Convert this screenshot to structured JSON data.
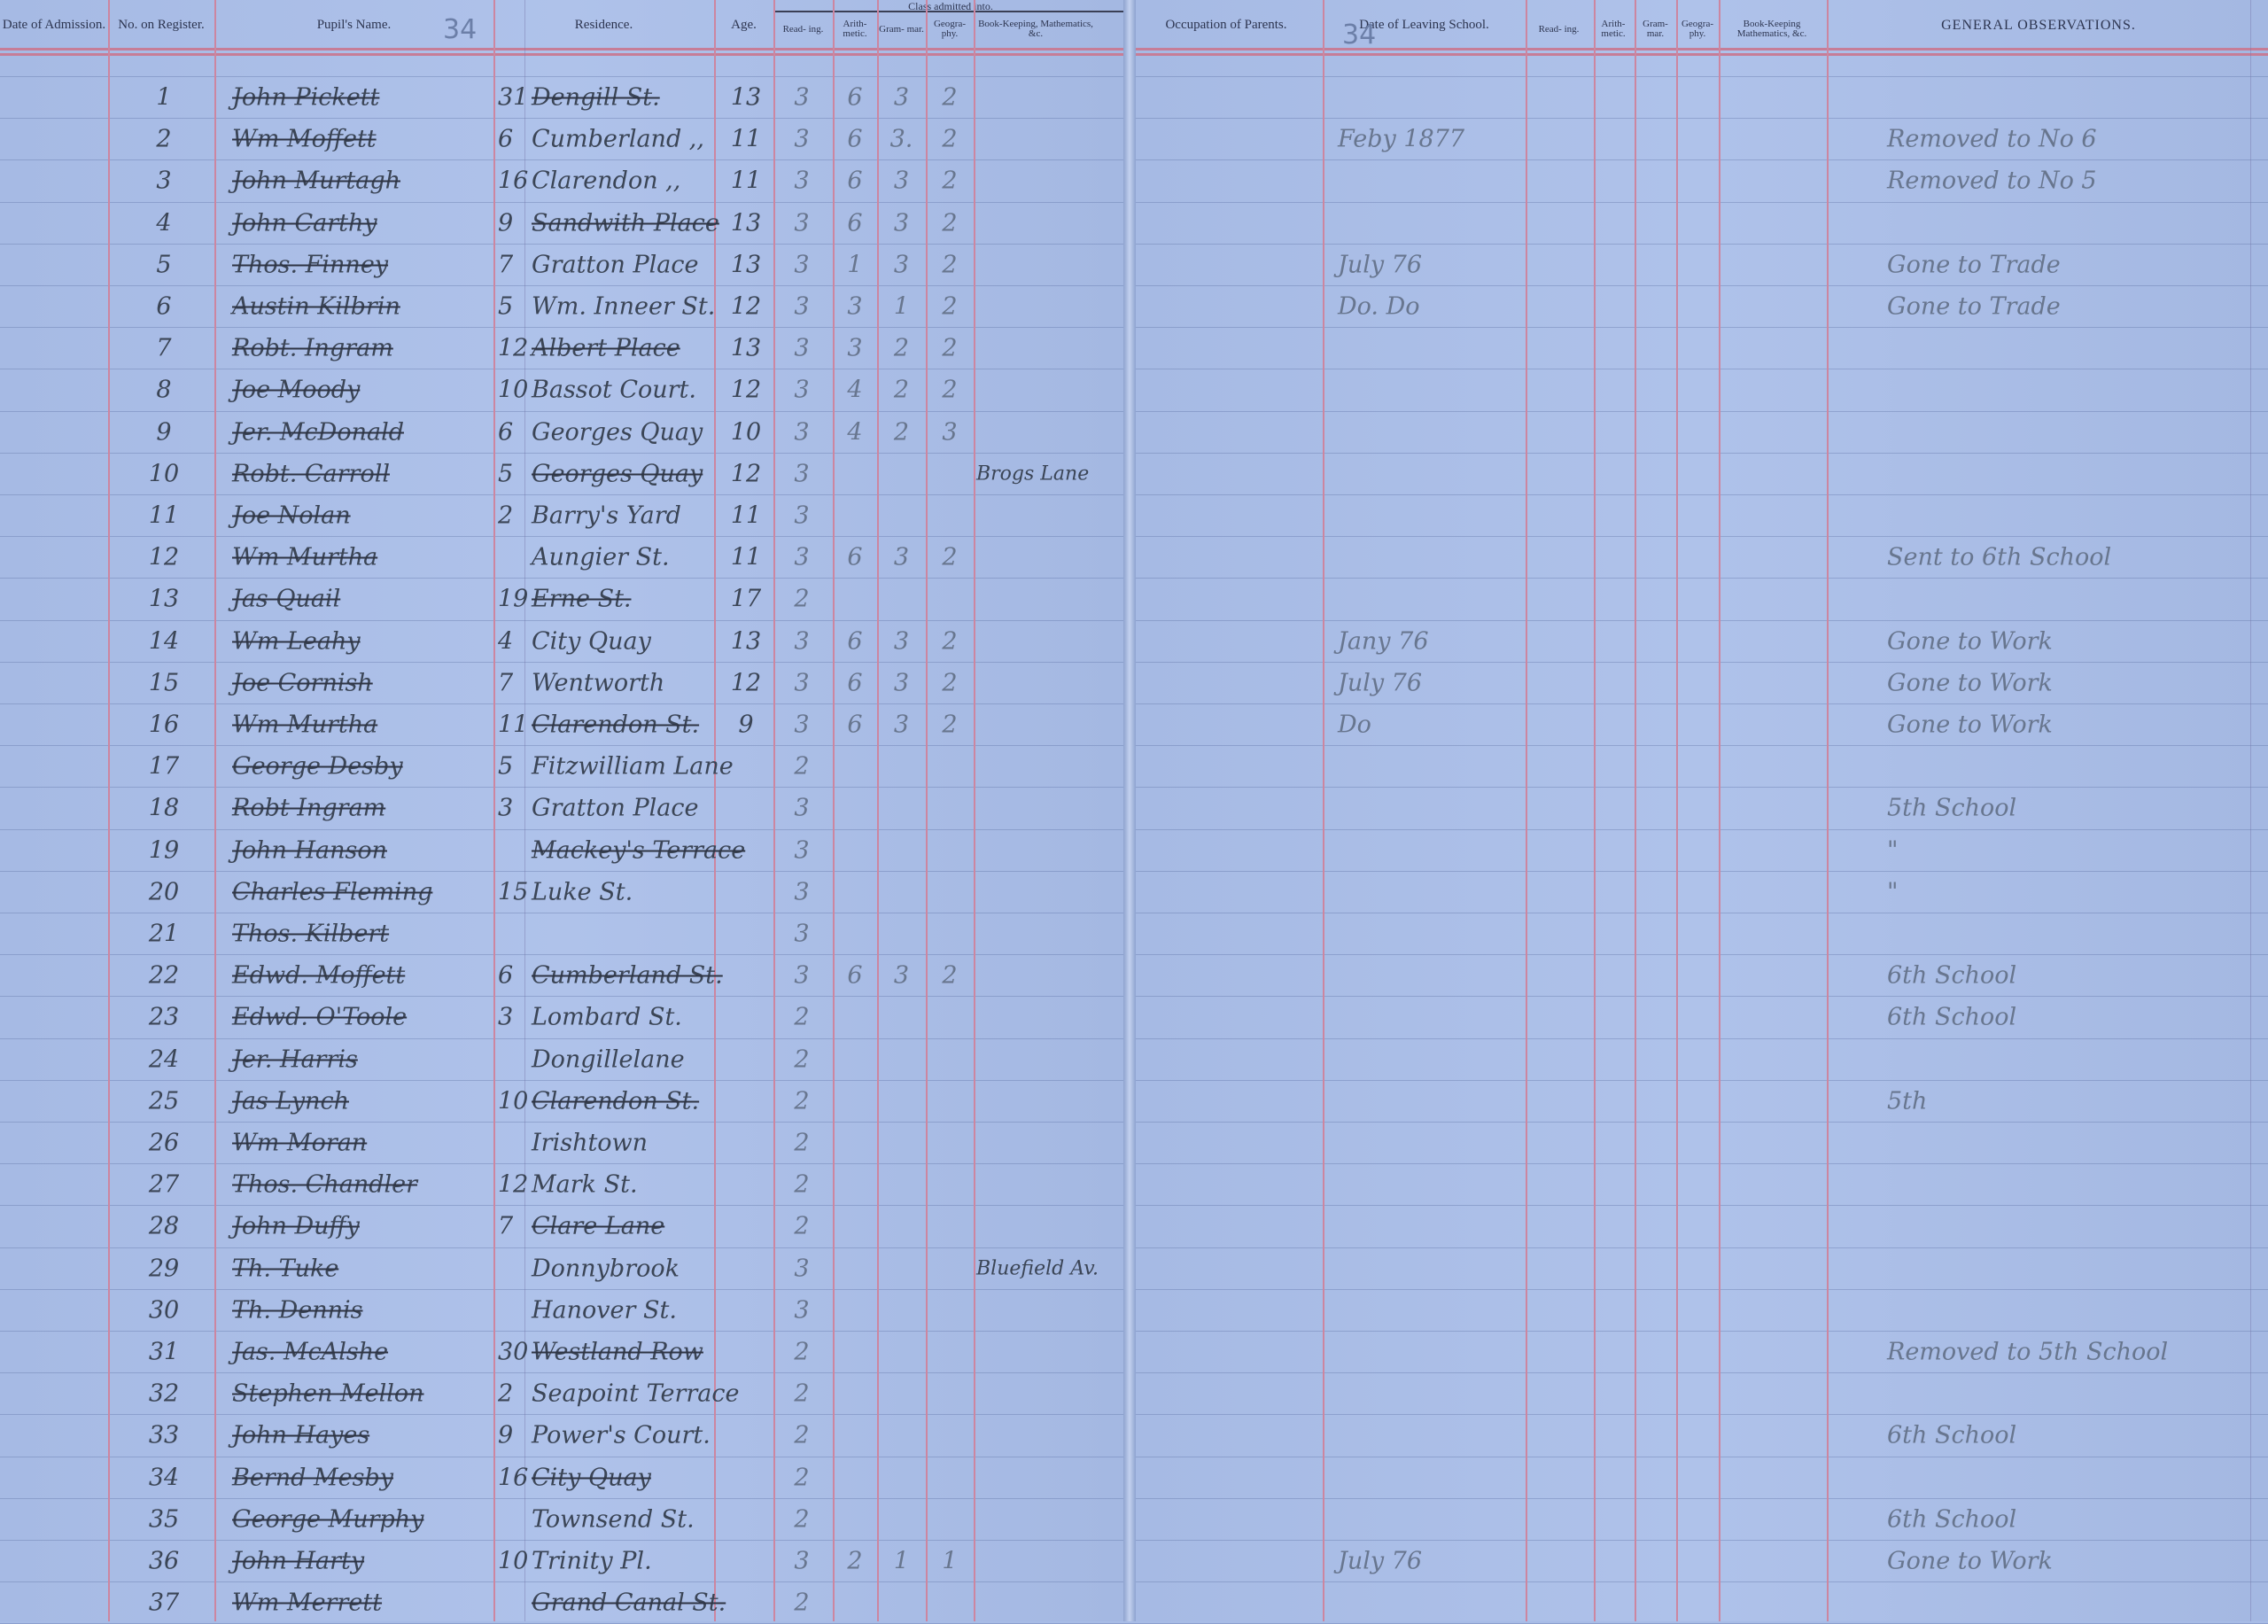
{
  "left_page": {
    "page_number": "34",
    "headers": {
      "date_of_admission": "Date of Admission.",
      "no_on_register": "No. on Register.",
      "pupils_name": "Pupil's Name.",
      "residence": "Residence.",
      "age": "Age.",
      "class_group": "Class admitted into.",
      "reading": "Read- ing.",
      "arithmetic": "Arith- metic.",
      "grammar": "Gram- mar.",
      "geography": "Geogra- phy.",
      "bookkeeping": "Book-Keeping, Mathematics, &c."
    }
  },
  "right_page": {
    "page_number": "34",
    "headers": {
      "occupation": "Occupation of Parents.",
      "date_leaving": "Date of Leaving School.",
      "reading": "Read- ing.",
      "arithmetic": "Arith- metic.",
      "grammar": "Gram- mar.",
      "geography": "Geogra- phy.",
      "bookkeeping": "Book-Keeping Mathematics, &c.",
      "observations": "GENERAL OBSERVATIONS."
    }
  },
  "colors": {
    "paper": "#a8bce6",
    "red_rule": "#cc86a0",
    "ink": "#3b4556"
  },
  "rows": [
    {
      "no": "1",
      "name": "John Pickett",
      "house": "31",
      "street": "Dengill St.",
      "age": "13",
      "reading": "3",
      "arith": "6",
      "gram": "3",
      "geo": "2",
      "book": "",
      "leaving": "",
      "obs": ""
    },
    {
      "no": "2",
      "name": "Wm Moffett",
      "house": "6",
      "street": "Cumberland ,,",
      "age": "11",
      "reading": "3",
      "arith": "6",
      "gram": "3.",
      "geo": "2",
      "book": "",
      "leaving": "Feby 1877",
      "obs": "Removed to No 6"
    },
    {
      "no": "3",
      "name": "John Murtagh",
      "house": "16",
      "street": "Clarendon ,,",
      "age": "11",
      "reading": "3",
      "arith": "6",
      "gram": "3",
      "geo": "2",
      "book": "",
      "leaving": "",
      "obs": "Removed to No 5"
    },
    {
      "no": "4",
      "name": "John Carthy",
      "house": "9",
      "street": "Sandwith Place",
      "age": "13",
      "reading": "3",
      "arith": "6",
      "gram": "3",
      "geo": "2",
      "book": "",
      "leaving": "",
      "obs": ""
    },
    {
      "no": "5",
      "name": "Thos. Finney",
      "house": "7",
      "street": "Gratton Place",
      "age": "13",
      "reading": "3",
      "arith": "1",
      "gram": "3",
      "geo": "2",
      "book": "",
      "leaving": "July 76",
      "obs": "Gone to Trade"
    },
    {
      "no": "6",
      "name": "Austin Kilbrin",
      "house": "5",
      "street": "Wm. Inneer St.",
      "age": "12",
      "reading": "3",
      "arith": "3",
      "gram": "1",
      "geo": "2",
      "book": "",
      "leaving": "Do. Do",
      "obs": "Gone to Trade"
    },
    {
      "no": "7",
      "name": "Robt. Ingram",
      "house": "12",
      "street": "Albert Place",
      "age": "13",
      "reading": "3",
      "arith": "3",
      "gram": "2",
      "geo": "2",
      "book": "",
      "leaving": "",
      "obs": ""
    },
    {
      "no": "8",
      "name": "Joe Moody",
      "house": "10",
      "street": "Bassot Court.",
      "age": "12",
      "reading": "3",
      "arith": "4",
      "gram": "2",
      "geo": "2",
      "book": "",
      "leaving": "",
      "obs": ""
    },
    {
      "no": "9",
      "name": "Jer. McDonald",
      "house": "6",
      "street": "Georges Quay",
      "age": "10",
      "reading": "3",
      "arith": "4",
      "gram": "2",
      "geo": "3",
      "book": "",
      "leaving": "",
      "obs": ""
    },
    {
      "no": "10",
      "name": "Robt. Carroll",
      "house": "5",
      "street": "Georges Quay",
      "age": "12",
      "reading": "3",
      "arith": "",
      "gram": "",
      "geo": "",
      "book": "Brogs Lane",
      "leaving": "",
      "obs": ""
    },
    {
      "no": "11",
      "name": "Joe Nolan",
      "house": "2",
      "street": "Barry's Yard",
      "age": "11",
      "reading": "3",
      "arith": "",
      "gram": "",
      "geo": "",
      "book": "",
      "leaving": "",
      "obs": ""
    },
    {
      "no": "12",
      "name": "Wm Murtha",
      "house": "",
      "street": "Aungier St.",
      "age": "11",
      "reading": "3",
      "arith": "6",
      "gram": "3",
      "geo": "2",
      "book": "",
      "leaving": "",
      "obs": "Sent to 6th School"
    },
    {
      "no": "13",
      "name": "Jas Quail",
      "house": "19",
      "street": "Erne St.",
      "age": "17",
      "reading": "2",
      "arith": "",
      "gram": "",
      "geo": "",
      "book": "",
      "leaving": "",
      "obs": ""
    },
    {
      "no": "14",
      "name": "Wm Leahy",
      "house": "4",
      "street": "City Quay",
      "age": "13",
      "reading": "3",
      "arith": "6",
      "gram": "3",
      "geo": "2",
      "book": "",
      "leaving": "Jany 76",
      "obs": "Gone to Work"
    },
    {
      "no": "15",
      "name": "Joe Cornish",
      "house": "7",
      "street": "Wentworth",
      "age": "12",
      "reading": "3",
      "arith": "6",
      "gram": "3",
      "geo": "2",
      "book": "",
      "leaving": "July 76",
      "obs": "Gone to Work"
    },
    {
      "no": "16",
      "name": "Wm Murtha",
      "house": "11",
      "street": "Clarendon St.",
      "age": "9",
      "reading": "3",
      "arith": "6",
      "gram": "3",
      "geo": "2",
      "book": "",
      "leaving": "Do",
      "obs": "Gone to Work"
    },
    {
      "no": "17",
      "name": "George Desby",
      "house": "5",
      "street": "Fitzwilliam Lane",
      "age": "",
      "reading": "2",
      "arith": "",
      "gram": "",
      "geo": "",
      "book": "",
      "leaving": "",
      "obs": ""
    },
    {
      "no": "18",
      "name": "Robt Ingram",
      "house": "3",
      "street": "Gratton Place",
      "age": "",
      "reading": "3",
      "arith": "",
      "gram": "",
      "geo": "",
      "book": "",
      "leaving": "",
      "obs": "5th School"
    },
    {
      "no": "19",
      "name": "John Hanson",
      "house": "",
      "street": "Mackey's Terrace",
      "age": "",
      "reading": "3",
      "arith": "",
      "gram": "",
      "geo": "",
      "book": "",
      "leaving": "",
      "obs": "\""
    },
    {
      "no": "20",
      "name": "Charles Fleming",
      "house": "15",
      "street": "Luke St.",
      "age": "",
      "reading": "3",
      "arith": "",
      "gram": "",
      "geo": "",
      "book": "",
      "leaving": "",
      "obs": "\""
    },
    {
      "no": "21",
      "name": "Thos. Kilbert",
      "house": "",
      "street": "",
      "age": "",
      "reading": "3",
      "arith": "",
      "gram": "",
      "geo": "",
      "book": "",
      "leaving": "",
      "obs": ""
    },
    {
      "no": "22",
      "name": "Edwd. Moffett",
      "house": "6",
      "street": "Cumberland St.",
      "age": "",
      "reading": "3",
      "arith": "6",
      "gram": "3",
      "geo": "2",
      "book": "",
      "leaving": "",
      "obs": "6th School"
    },
    {
      "no": "23",
      "name": "Edwd. O'Toole",
      "house": "3",
      "street": "Lombard St.",
      "age": "",
      "reading": "2",
      "arith": "",
      "gram": "",
      "geo": "",
      "book": "",
      "leaving": "",
      "obs": "6th School"
    },
    {
      "no": "24",
      "name": "Jer. Harris",
      "house": "",
      "street": "Dongillelane",
      "age": "",
      "reading": "2",
      "arith": "",
      "gram": "",
      "geo": "",
      "book": "",
      "leaving": "",
      "obs": ""
    },
    {
      "no": "25",
      "name": "Jas Lynch",
      "house": "10",
      "street": "Clarendon St.",
      "age": "",
      "reading": "2",
      "arith": "",
      "gram": "",
      "geo": "",
      "book": "",
      "leaving": "",
      "obs": "5th"
    },
    {
      "no": "26",
      "name": "Wm Moran",
      "house": "",
      "street": "Irishtown",
      "age": "",
      "reading": "2",
      "arith": "",
      "gram": "",
      "geo": "",
      "book": "",
      "leaving": "",
      "obs": ""
    },
    {
      "no": "27",
      "name": "Thos. Chandler",
      "house": "12",
      "street": "Mark St.",
      "age": "",
      "reading": "2",
      "arith": "",
      "gram": "",
      "geo": "",
      "book": "",
      "leaving": "",
      "obs": ""
    },
    {
      "no": "28",
      "name": "John Duffy",
      "house": "7",
      "street": "Clare Lane",
      "age": "",
      "reading": "2",
      "arith": "",
      "gram": "",
      "geo": "",
      "book": "",
      "leaving": "",
      "obs": ""
    },
    {
      "no": "29",
      "name": "Th. Tuke",
      "house": "",
      "street": "Donnybrook",
      "age": "",
      "reading": "3",
      "arith": "",
      "gram": "",
      "geo": "",
      "book": "Bluefield Av.",
      "leaving": "",
      "obs": ""
    },
    {
      "no": "30",
      "name": "Th. Dennis",
      "house": "",
      "street": "Hanover St.",
      "age": "",
      "reading": "3",
      "arith": "",
      "gram": "",
      "geo": "",
      "book": "",
      "leaving": "",
      "obs": ""
    },
    {
      "no": "31",
      "name": "Jas. McAlshe",
      "house": "30",
      "street": "Westland Row",
      "age": "",
      "reading": "2",
      "arith": "",
      "gram": "",
      "geo": "",
      "book": "",
      "leaving": "",
      "obs": "Removed to 5th School"
    },
    {
      "no": "32",
      "name": "Stephen Mellon",
      "house": "2",
      "street": "Seapoint Terrace",
      "age": "",
      "reading": "2",
      "arith": "",
      "gram": "",
      "geo": "",
      "book": "",
      "leaving": "",
      "obs": ""
    },
    {
      "no": "33",
      "name": "John Hayes",
      "house": "9",
      "street": "Power's Court.",
      "age": "",
      "reading": "2",
      "arith": "",
      "gram": "",
      "geo": "",
      "book": "",
      "leaving": "",
      "obs": "6th School"
    },
    {
      "no": "34",
      "name": "Bernd Mesby",
      "house": "16",
      "street": "City Quay",
      "age": "",
      "reading": "2",
      "arith": "",
      "gram": "",
      "geo": "",
      "book": "",
      "leaving": "",
      "obs": ""
    },
    {
      "no": "35",
      "name": "George Murphy",
      "house": "",
      "street": "Townsend St.",
      "age": "",
      "reading": "2",
      "arith": "",
      "gram": "",
      "geo": "",
      "book": "",
      "leaving": "",
      "obs": "6th School"
    },
    {
      "no": "36",
      "name": "John Harty",
      "house": "10",
      "street": "Trinity Pl.",
      "age": "",
      "reading": "3",
      "arith": "2",
      "gram": "1",
      "geo": "1",
      "book": "",
      "leaving": "July 76",
      "obs": "Gone to Work"
    },
    {
      "no": "37",
      "name": "Wm Merrett",
      "house": "",
      "street": "Grand Canal St.",
      "age": "",
      "reading": "2",
      "arith": "",
      "gram": "",
      "geo": "",
      "book": "",
      "leaving": "",
      "obs": ""
    }
  ]
}
